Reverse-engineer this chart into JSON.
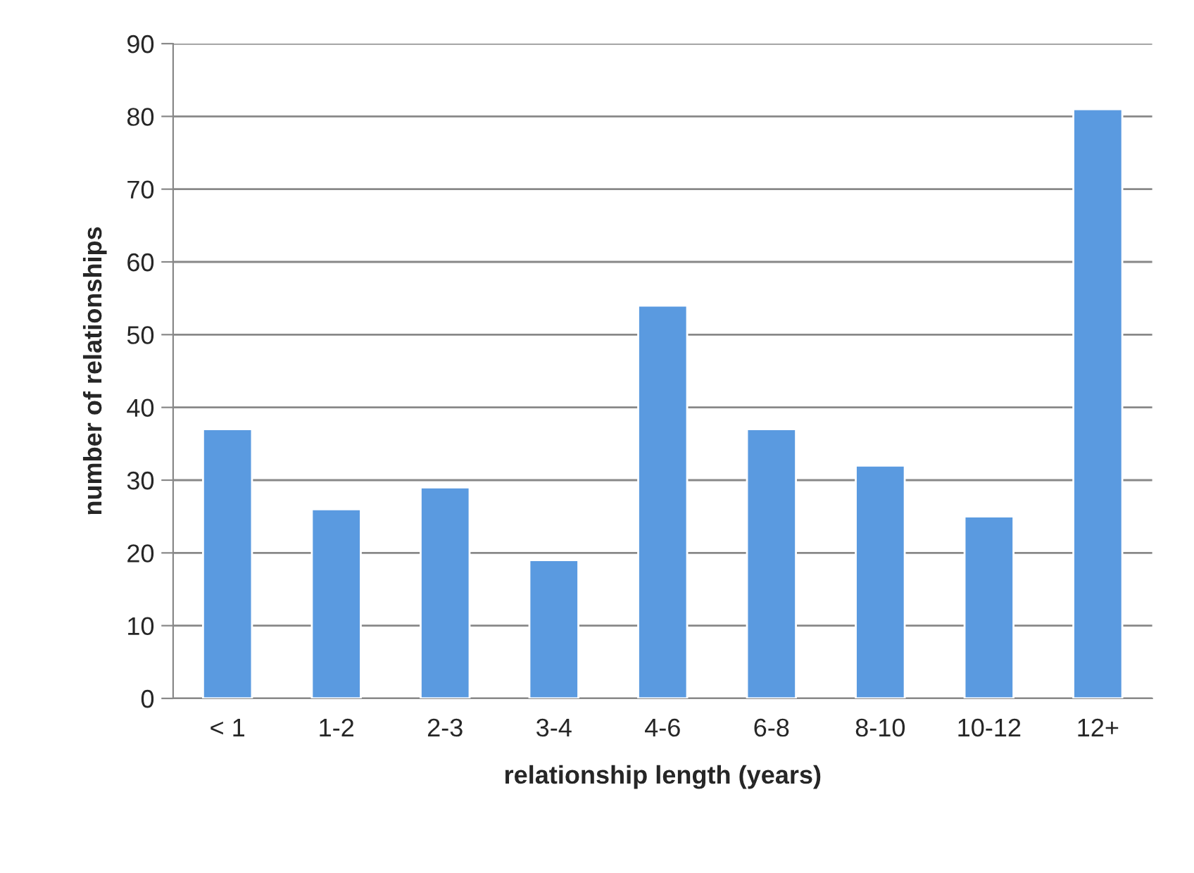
{
  "chart_data": {
    "type": "bar",
    "xlabel": "relationship length (years)",
    "ylabel": "number of relationships",
    "categories": [
      "< 1",
      "1-2",
      "2-3",
      "3-4",
      "4-6",
      "6-8",
      "8-10",
      "10-12",
      "12+"
    ],
    "values": [
      37,
      26,
      29,
      19,
      54,
      37,
      32,
      25,
      81
    ],
    "color": "#5a9ae0",
    "ylim": [
      0,
      90
    ],
    "yticks": [
      0,
      10,
      20,
      30,
      40,
      50,
      60,
      70,
      80,
      90
    ],
    "grid": "y",
    "legend": false
  }
}
